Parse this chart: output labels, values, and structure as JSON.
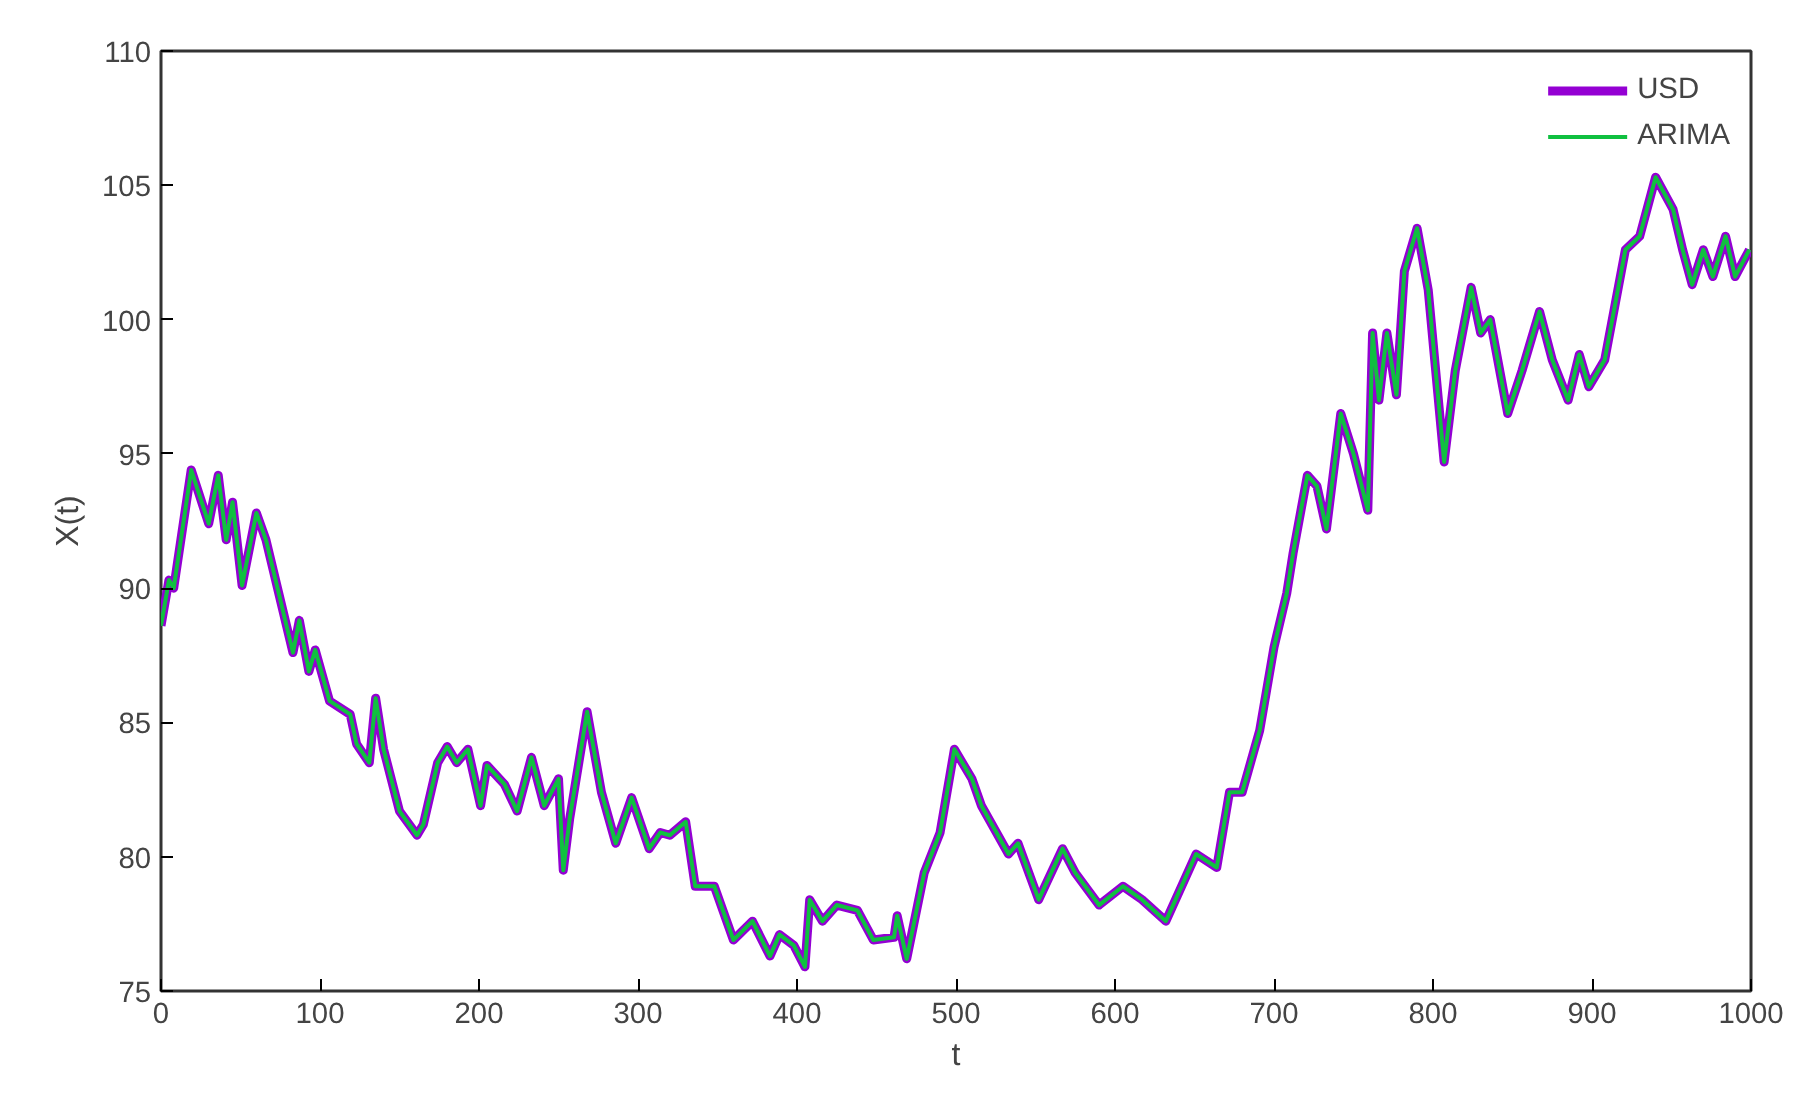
{
  "chart_data": {
    "type": "line",
    "xlabel": "t",
    "ylabel": "X(t)",
    "x": [
      0,
      5,
      8,
      19,
      30,
      36,
      41,
      45,
      51,
      60,
      66,
      83,
      87,
      93,
      97,
      106,
      119,
      123,
      131,
      135,
      140,
      150,
      161,
      165,
      174,
      180,
      186,
      193,
      201,
      205,
      216,
      224,
      233,
      241,
      250,
      253,
      257,
      268,
      277,
      286,
      296,
      307,
      314,
      320,
      330,
      336,
      348,
      360,
      372,
      383,
      389,
      398,
      405,
      408,
      416,
      425,
      438,
      448,
      461,
      463,
      469,
      480,
      490,
      499,
      510,
      516,
      533,
      539,
      552,
      567,
      575,
      590,
      605,
      617,
      632,
      651,
      664,
      672,
      680,
      691,
      700,
      708,
      712,
      721,
      727,
      733,
      742,
      750,
      759,
      762,
      766,
      771,
      777,
      782,
      790,
      797,
      807,
      814,
      824,
      830,
      836,
      847,
      856,
      867,
      875,
      885,
      892,
      898,
      908,
      921,
      930,
      940,
      951,
      957,
      963,
      970,
      976,
      984,
      990,
      999
    ],
    "series": [
      {
        "name": "USD",
        "color": "#9400d3",
        "values": [
          88.6,
          90.3,
          90.0,
          94.4,
          92.4,
          94.2,
          91.8,
          93.2,
          90.1,
          92.8,
          91.8,
          87.6,
          88.8,
          86.9,
          87.7,
          85.8,
          85.3,
          84.2,
          83.5,
          85.9,
          84.0,
          81.7,
          80.8,
          81.2,
          83.5,
          84.1,
          83.5,
          84.0,
          81.9,
          83.4,
          82.7,
          81.7,
          83.7,
          81.9,
          82.9,
          79.5,
          81.4,
          85.4,
          82.4,
          80.5,
          82.2,
          80.3,
          80.9,
          80.8,
          81.3,
          78.9,
          78.9,
          76.9,
          77.6,
          76.3,
          77.1,
          76.7,
          75.9,
          78.4,
          77.6,
          78.2,
          78.0,
          76.9,
          77.0,
          77.8,
          76.2,
          79.4,
          80.9,
          84.0,
          82.9,
          81.9,
          80.1,
          80.5,
          78.4,
          80.3,
          79.4,
          78.2,
          78.9,
          78.4,
          77.6,
          80.1,
          79.6,
          82.4,
          82.4,
          84.7,
          87.8,
          89.8,
          91.3,
          94.2,
          93.8,
          92.2,
          96.5,
          95.0,
          92.9,
          99.5,
          97.0,
          99.5,
          97.2,
          101.8,
          103.4,
          101.1,
          94.7,
          98.1,
          101.2,
          99.5,
          100.0,
          96.5,
          98.1,
          100.3,
          98.5,
          97.0,
          98.7,
          97.5,
          98.5,
          102.6,
          103.1,
          105.3,
          104.1,
          102.6,
          101.3,
          102.6,
          101.6,
          103.1,
          101.6,
          102.6
        ]
      },
      {
        "name": "ARIMA",
        "color": "#10c040",
        "values": [
          88.6,
          90.3,
          90.0,
          94.4,
          92.4,
          94.2,
          91.8,
          93.2,
          90.1,
          92.8,
          91.8,
          87.6,
          88.8,
          86.9,
          87.7,
          85.8,
          85.3,
          84.2,
          83.5,
          85.9,
          84.0,
          81.7,
          80.8,
          81.2,
          83.5,
          84.1,
          83.5,
          84.0,
          81.9,
          83.4,
          82.7,
          81.7,
          83.7,
          81.9,
          82.9,
          79.5,
          81.4,
          85.4,
          82.4,
          80.5,
          82.2,
          80.3,
          80.9,
          80.8,
          81.3,
          78.9,
          78.9,
          76.9,
          77.6,
          76.3,
          77.1,
          76.7,
          75.9,
          78.4,
          77.6,
          78.2,
          78.0,
          76.9,
          77.0,
          77.8,
          76.2,
          79.4,
          80.9,
          84.0,
          82.9,
          81.9,
          80.1,
          80.5,
          78.4,
          80.3,
          79.4,
          78.2,
          78.9,
          78.4,
          77.6,
          80.1,
          79.6,
          82.4,
          82.4,
          84.7,
          87.8,
          89.8,
          91.3,
          94.2,
          93.8,
          92.2,
          96.5,
          95.0,
          92.9,
          99.5,
          97.0,
          99.5,
          97.2,
          101.8,
          103.4,
          101.1,
          94.7,
          98.1,
          101.2,
          99.5,
          100.0,
          96.5,
          98.1,
          100.3,
          98.5,
          97.0,
          98.7,
          97.5,
          98.5,
          102.6,
          103.1,
          105.3,
          104.1,
          102.6,
          101.3,
          102.6,
          101.6,
          103.1,
          101.6,
          102.6
        ]
      }
    ],
    "xlim": [
      0,
      1000
    ],
    "ylim": [
      75,
      110
    ],
    "xticks": [
      0,
      100,
      200,
      300,
      400,
      500,
      600,
      700,
      800,
      900,
      1000
    ],
    "yticks": [
      75,
      80,
      85,
      90,
      95,
      100,
      105,
      110
    ],
    "grid": false,
    "legend": "top right",
    "marker": "none",
    "line_style": "solid"
  }
}
